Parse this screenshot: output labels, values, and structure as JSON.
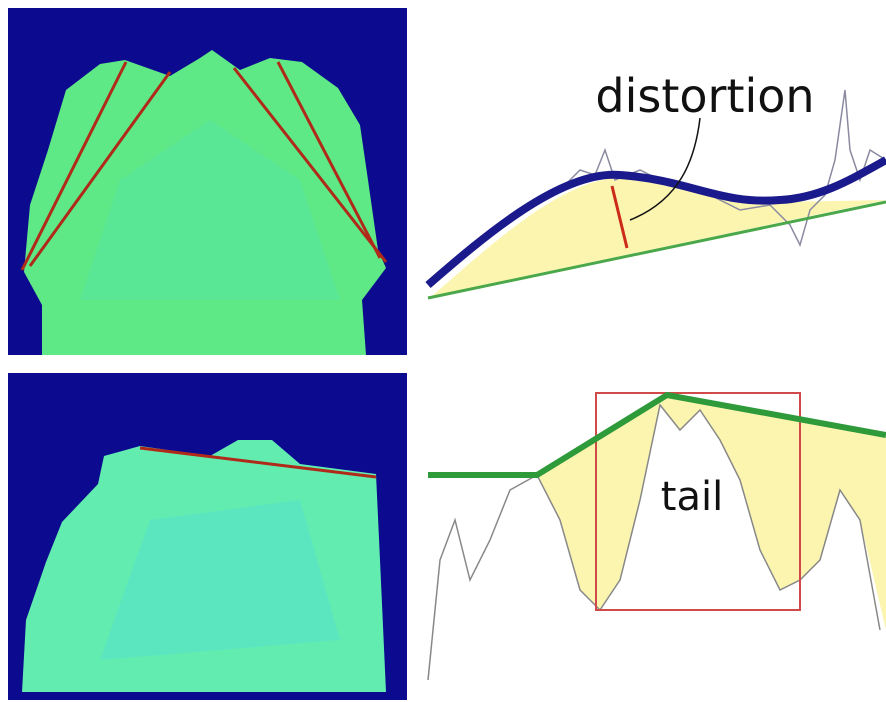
{
  "panels": {
    "top_right": {
      "label": "distortion"
    },
    "bottom_right": {
      "label": "tail"
    }
  }
}
